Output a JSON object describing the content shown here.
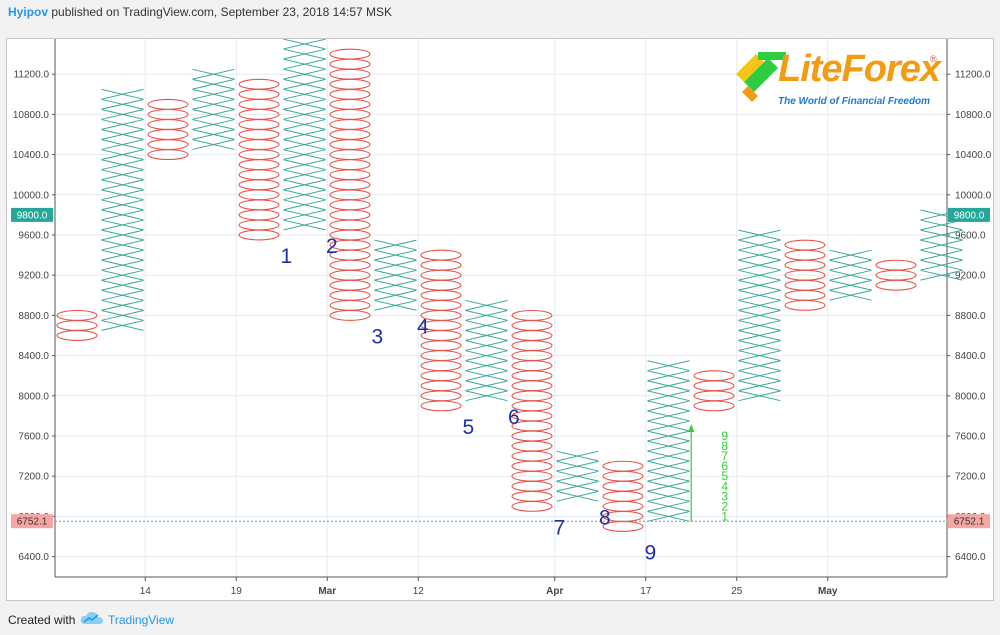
{
  "header": {
    "author": "Hyipov",
    "rest": " published on TradingView.com, September 23, 2018 14:57 MSK"
  },
  "footer": {
    "created_with": "Created with",
    "brand": "TradingView"
  },
  "logo": {
    "brand": "LiteForex",
    "reg": "®",
    "tagline": "The World of Financial Freedom",
    "colors": {
      "orange": "#f39c12",
      "green": "#2ecc40",
      "blue": "#1a7bd4"
    }
  },
  "colors": {
    "x": "#3aa89a",
    "o": "#e8534a",
    "grid": "#e3ebf3",
    "price_marker": "#26a69a",
    "low_marker": "#f6a5a5",
    "count_line": "#33cc33"
  },
  "chart_data": {
    "type": "point-and-figure",
    "box_size": 100,
    "ylim": [
      6200,
      11400
    ],
    "y_ticks": [
      6400,
      6800,
      7200,
      7600,
      8000,
      8400,
      8800,
      9200,
      9600,
      10000,
      10400,
      10800,
      11200
    ],
    "y_tick_labels": [
      "6400.0",
      "6800.0",
      "7200.0",
      "7600.0",
      "8000.0",
      "8400.0",
      "8800.0",
      "9200.0",
      "9600.0",
      "10000.0",
      "10400.0",
      "10800.0",
      "11200.0"
    ],
    "x_labels": [
      "14",
      "19",
      "Mar",
      "12",
      "Apr",
      "17",
      "25",
      "May"
    ],
    "x_label_columns": [
      1.5,
      3.5,
      5.5,
      7.5,
      10.5,
      12.5,
      14.5,
      16.5
    ],
    "columns": [
      {
        "type": "O",
        "high": 8800,
        "low": 8600
      },
      {
        "type": "X",
        "low": 8700,
        "high": 11000
      },
      {
        "type": "O",
        "high": 10900,
        "low": 10400
      },
      {
        "type": "X",
        "low": 10500,
        "high": 11200
      },
      {
        "type": "O",
        "high": 11100,
        "low": 9600
      },
      {
        "type": "X",
        "low": 9700,
        "high": 11500
      },
      {
        "type": "O",
        "high": 11400,
        "low": 8800
      },
      {
        "type": "X",
        "low": 8900,
        "high": 9500
      },
      {
        "type": "O",
        "high": 9400,
        "low": 7900
      },
      {
        "type": "X",
        "low": 8000,
        "high": 8900
      },
      {
        "type": "O",
        "high": 8800,
        "low": 6900
      },
      {
        "type": "X",
        "low": 7000,
        "high": 7400
      },
      {
        "type": "O",
        "high": 7300,
        "low": 6700
      },
      {
        "type": "X",
        "low": 6800,
        "high": 8300
      },
      {
        "type": "O",
        "high": 8200,
        "low": 7900
      },
      {
        "type": "X",
        "low": 8000,
        "high": 9600
      },
      {
        "type": "O",
        "high": 9500,
        "low": 8900
      },
      {
        "type": "X",
        "low": 9000,
        "high": 9400
      },
      {
        "type": "O",
        "high": 9300,
        "low": 9100
      },
      {
        "type": "X",
        "low": 9200,
        "high": 9800
      }
    ],
    "annotations": [
      {
        "text": "1",
        "col": 4.6,
        "y": 9400
      },
      {
        "text": "2",
        "col": 5.6,
        "y": 9500
      },
      {
        "text": "3",
        "col": 6.6,
        "y": 8600
      },
      {
        "text": "4",
        "col": 7.6,
        "y": 8700
      },
      {
        "text": "5",
        "col": 8.6,
        "y": 7700
      },
      {
        "text": "6",
        "col": 9.6,
        "y": 7800
      },
      {
        "text": "7",
        "col": 10.6,
        "y": 6700
      },
      {
        "text": "8",
        "col": 11.6,
        "y": 6800
      },
      {
        "text": "9",
        "col": 12.6,
        "y": 6450
      }
    ],
    "count_arrow": {
      "col": 13.5,
      "from": 6750,
      "to": 7700
    },
    "count_labels": {
      "col": 14.5,
      "labels": [
        "1",
        "2",
        "3",
        "4",
        "5",
        "6",
        "7",
        "8",
        "9"
      ],
      "from": 6800
    },
    "current_price": {
      "value": 9800,
      "label": "9800.0"
    },
    "reference_low": {
      "value": 6752.1,
      "label": "6752.1"
    }
  }
}
